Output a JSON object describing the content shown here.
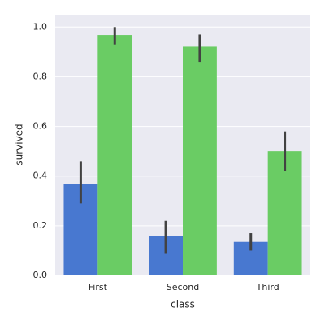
{
  "chart_data": {
    "type": "bar",
    "x_label": "class",
    "y_label": "survived",
    "categories": [
      "First",
      "Second",
      "Third"
    ],
    "series": [
      {
        "color": "#4878d0",
        "values": [
          0.369,
          0.157,
          0.135
        ],
        "ci_low": [
          0.29,
          0.09,
          0.1
        ],
        "ci_high": [
          0.46,
          0.22,
          0.17
        ]
      },
      {
        "color": "#6acc64",
        "values": [
          0.968,
          0.921,
          0.5
        ],
        "ci_low": [
          0.93,
          0.86,
          0.42
        ],
        "ci_high": [
          1.0,
          0.97,
          0.58
        ]
      }
    ],
    "ylim": [
      0,
      1.05
    ],
    "yticks": [
      {
        "value": 0,
        "label": "0.0"
      },
      {
        "value": 0.2,
        "label": "0.2"
      },
      {
        "value": 0.4,
        "label": "0.4"
      },
      {
        "value": 0.6,
        "label": "0.6"
      },
      {
        "value": 0.8,
        "label": "0.8"
      },
      {
        "value": 1,
        "label": "1.0"
      }
    ],
    "grid": true,
    "error_color": "#424242"
  }
}
